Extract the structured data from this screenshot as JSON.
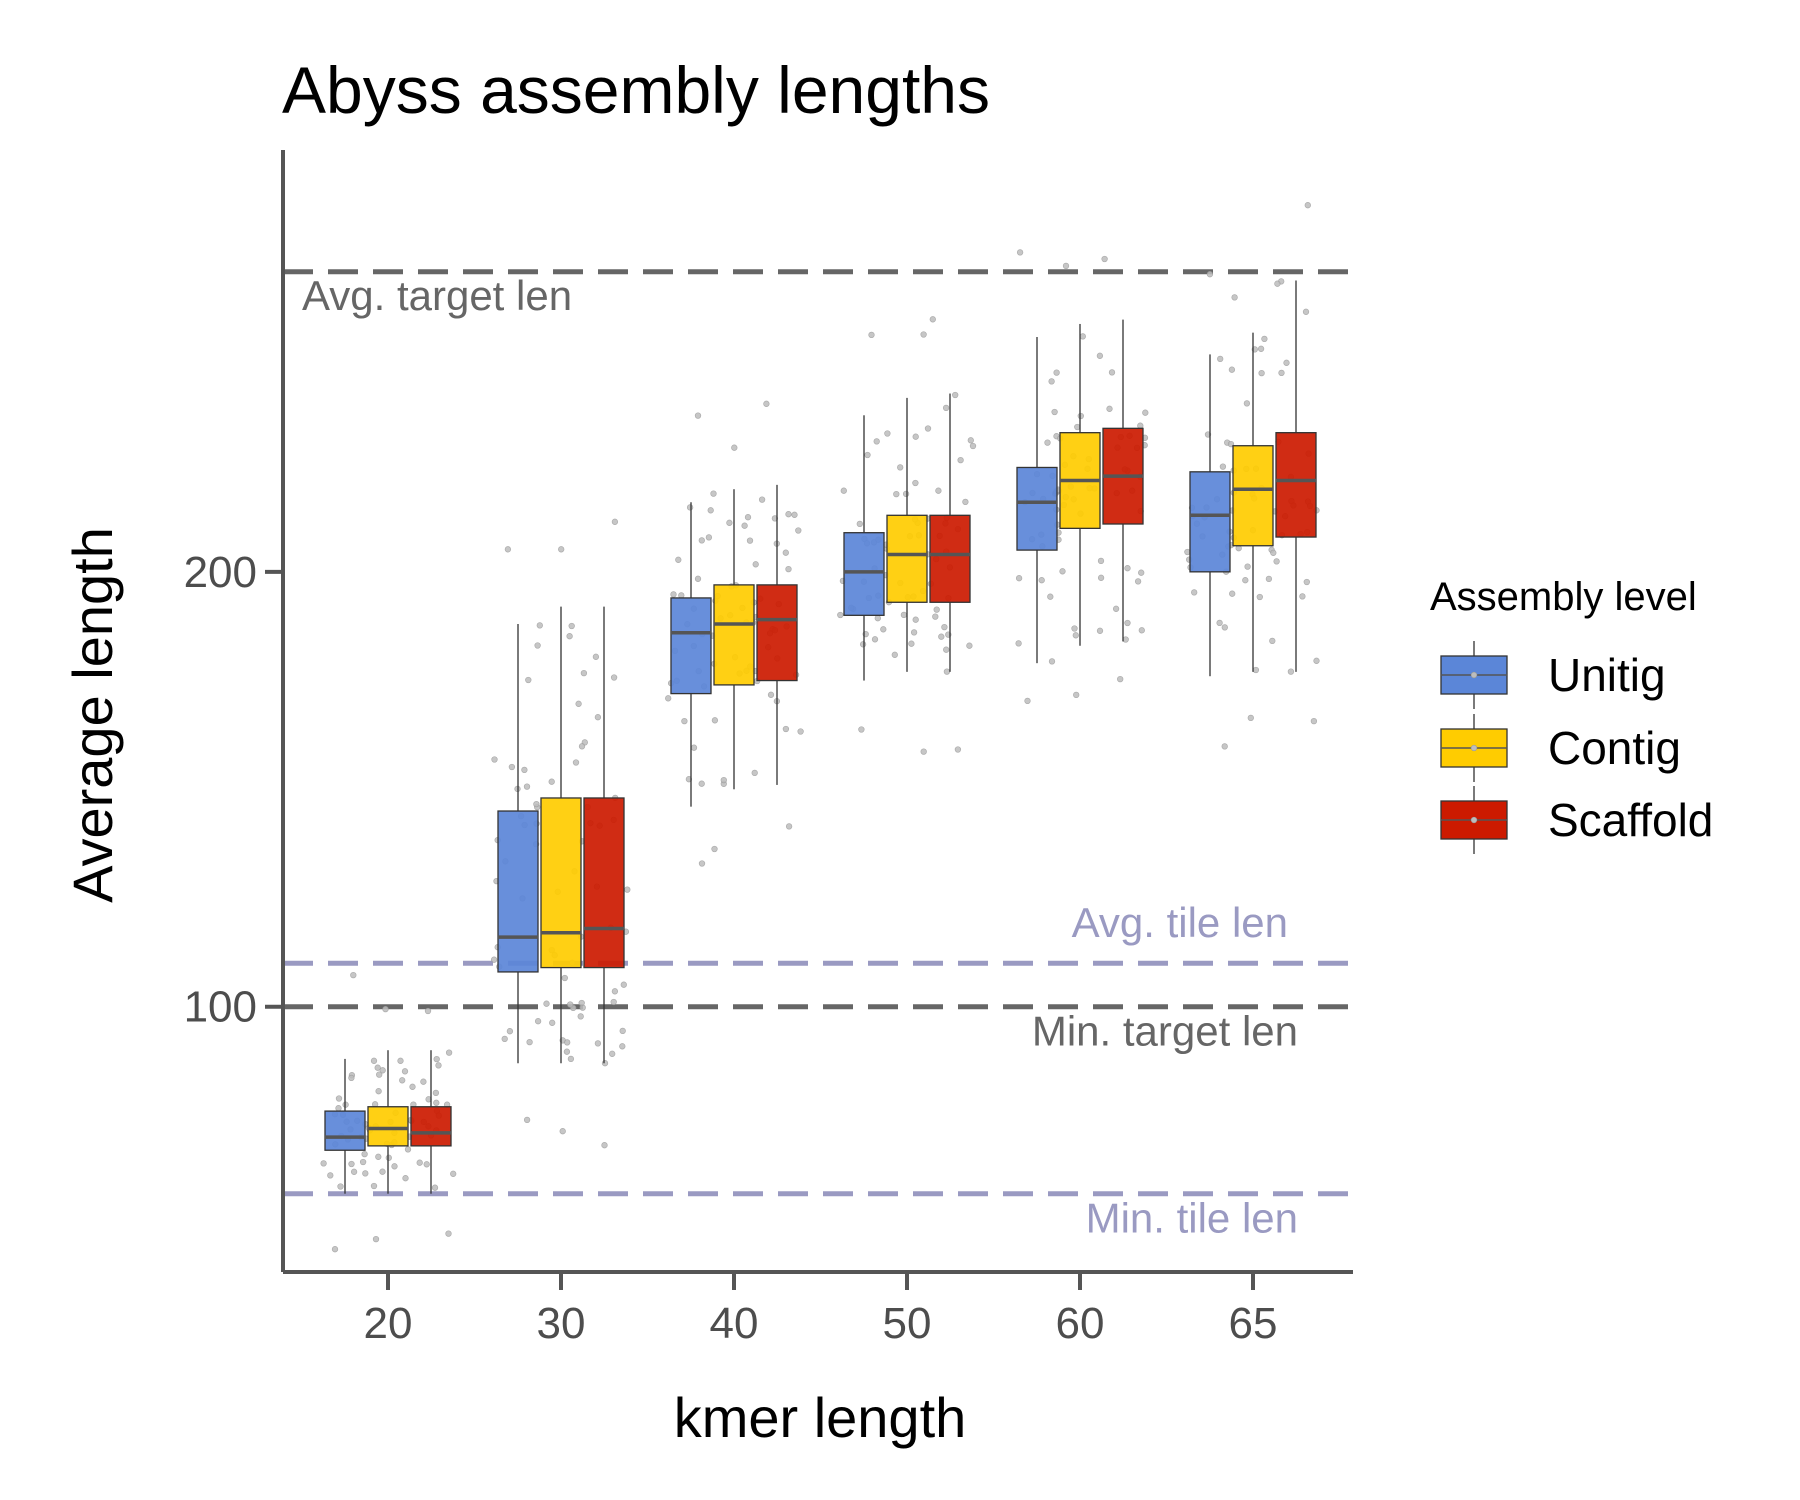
{
  "chart_data": {
    "type": "box",
    "title": "Abyss assembly lengths",
    "xlabel": "kmer length",
    "ylabel": "Average length",
    "categories": [
      "20",
      "30",
      "40",
      "50",
      "60",
      "65"
    ],
    "ylim": [
      39,
      297
    ],
    "yticks": [
      100,
      200
    ],
    "grid": false,
    "legend": {
      "title": "Assembly level",
      "position": "right"
    },
    "reference_lines": [
      {
        "label": "Avg. target len",
        "y": 269,
        "color": "#666666",
        "label_position": "top-left-below"
      },
      {
        "label": "Avg. tile len",
        "y": 110,
        "color": "#9a9ac2",
        "label_position": "right-above"
      },
      {
        "label": "Min. target len",
        "y": 100,
        "color": "#666666",
        "label_position": "right-below"
      },
      {
        "label": "Min. tile len",
        "y": 57,
        "color": "#9a9ac2",
        "label_position": "right-below"
      }
    ],
    "series": [
      {
        "name": "Unitig",
        "color": "#5b86d8",
        "boxes": [
          {
            "whisker_low": 57,
            "q1": 67,
            "median": 70,
            "q3": 76,
            "whisker_high": 88
          },
          {
            "whisker_low": 87,
            "q1": 108,
            "median": 116,
            "q3": 145,
            "whisker_high": 188
          },
          {
            "whisker_low": 146,
            "q1": 172,
            "median": 186,
            "q3": 194,
            "whisker_high": 216
          },
          {
            "whisker_low": 175,
            "q1": 190,
            "median": 200,
            "q3": 209,
            "whisker_high": 236
          },
          {
            "whisker_low": 179,
            "q1": 205,
            "median": 216,
            "q3": 224,
            "whisker_high": 254
          },
          {
            "whisker_low": 176,
            "q1": 200,
            "median": 213,
            "q3": 223,
            "whisker_high": 250
          }
        ]
      },
      {
        "name": "Contig",
        "color": "#ffcc00",
        "boxes": [
          {
            "whisker_low": 57,
            "q1": 68,
            "median": 72,
            "q3": 77,
            "whisker_high": 90
          },
          {
            "whisker_low": 87,
            "q1": 109,
            "median": 117,
            "q3": 148,
            "whisker_high": 192
          },
          {
            "whisker_low": 150,
            "q1": 174,
            "median": 188,
            "q3": 197,
            "whisker_high": 219
          },
          {
            "whisker_low": 177,
            "q1": 193,
            "median": 204,
            "q3": 213,
            "whisker_high": 240
          },
          {
            "whisker_low": 183,
            "q1": 210,
            "median": 221,
            "q3": 232,
            "whisker_high": 257
          },
          {
            "whisker_low": 177,
            "q1": 206,
            "median": 219,
            "q3": 229,
            "whisker_high": 255
          }
        ]
      },
      {
        "name": "Scaffold",
        "color": "#cc1a00",
        "boxes": [
          {
            "whisker_low": 57,
            "q1": 68,
            "median": 71,
            "q3": 77,
            "whisker_high": 90
          },
          {
            "whisker_low": 87,
            "q1": 109,
            "median": 118,
            "q3": 148,
            "whisker_high": 192
          },
          {
            "whisker_low": 151,
            "q1": 175,
            "median": 189,
            "q3": 197,
            "whisker_high": 220
          },
          {
            "whisker_low": 177,
            "q1": 193,
            "median": 204,
            "q3": 213,
            "whisker_high": 241
          },
          {
            "whisker_low": 184,
            "q1": 211,
            "median": 222,
            "q3": 233,
            "whisker_high": 258
          },
          {
            "whisker_low": 177,
            "q1": 208,
            "median": 221,
            "q3": 232,
            "whisker_high": 267
          }
        ]
      }
    ]
  }
}
